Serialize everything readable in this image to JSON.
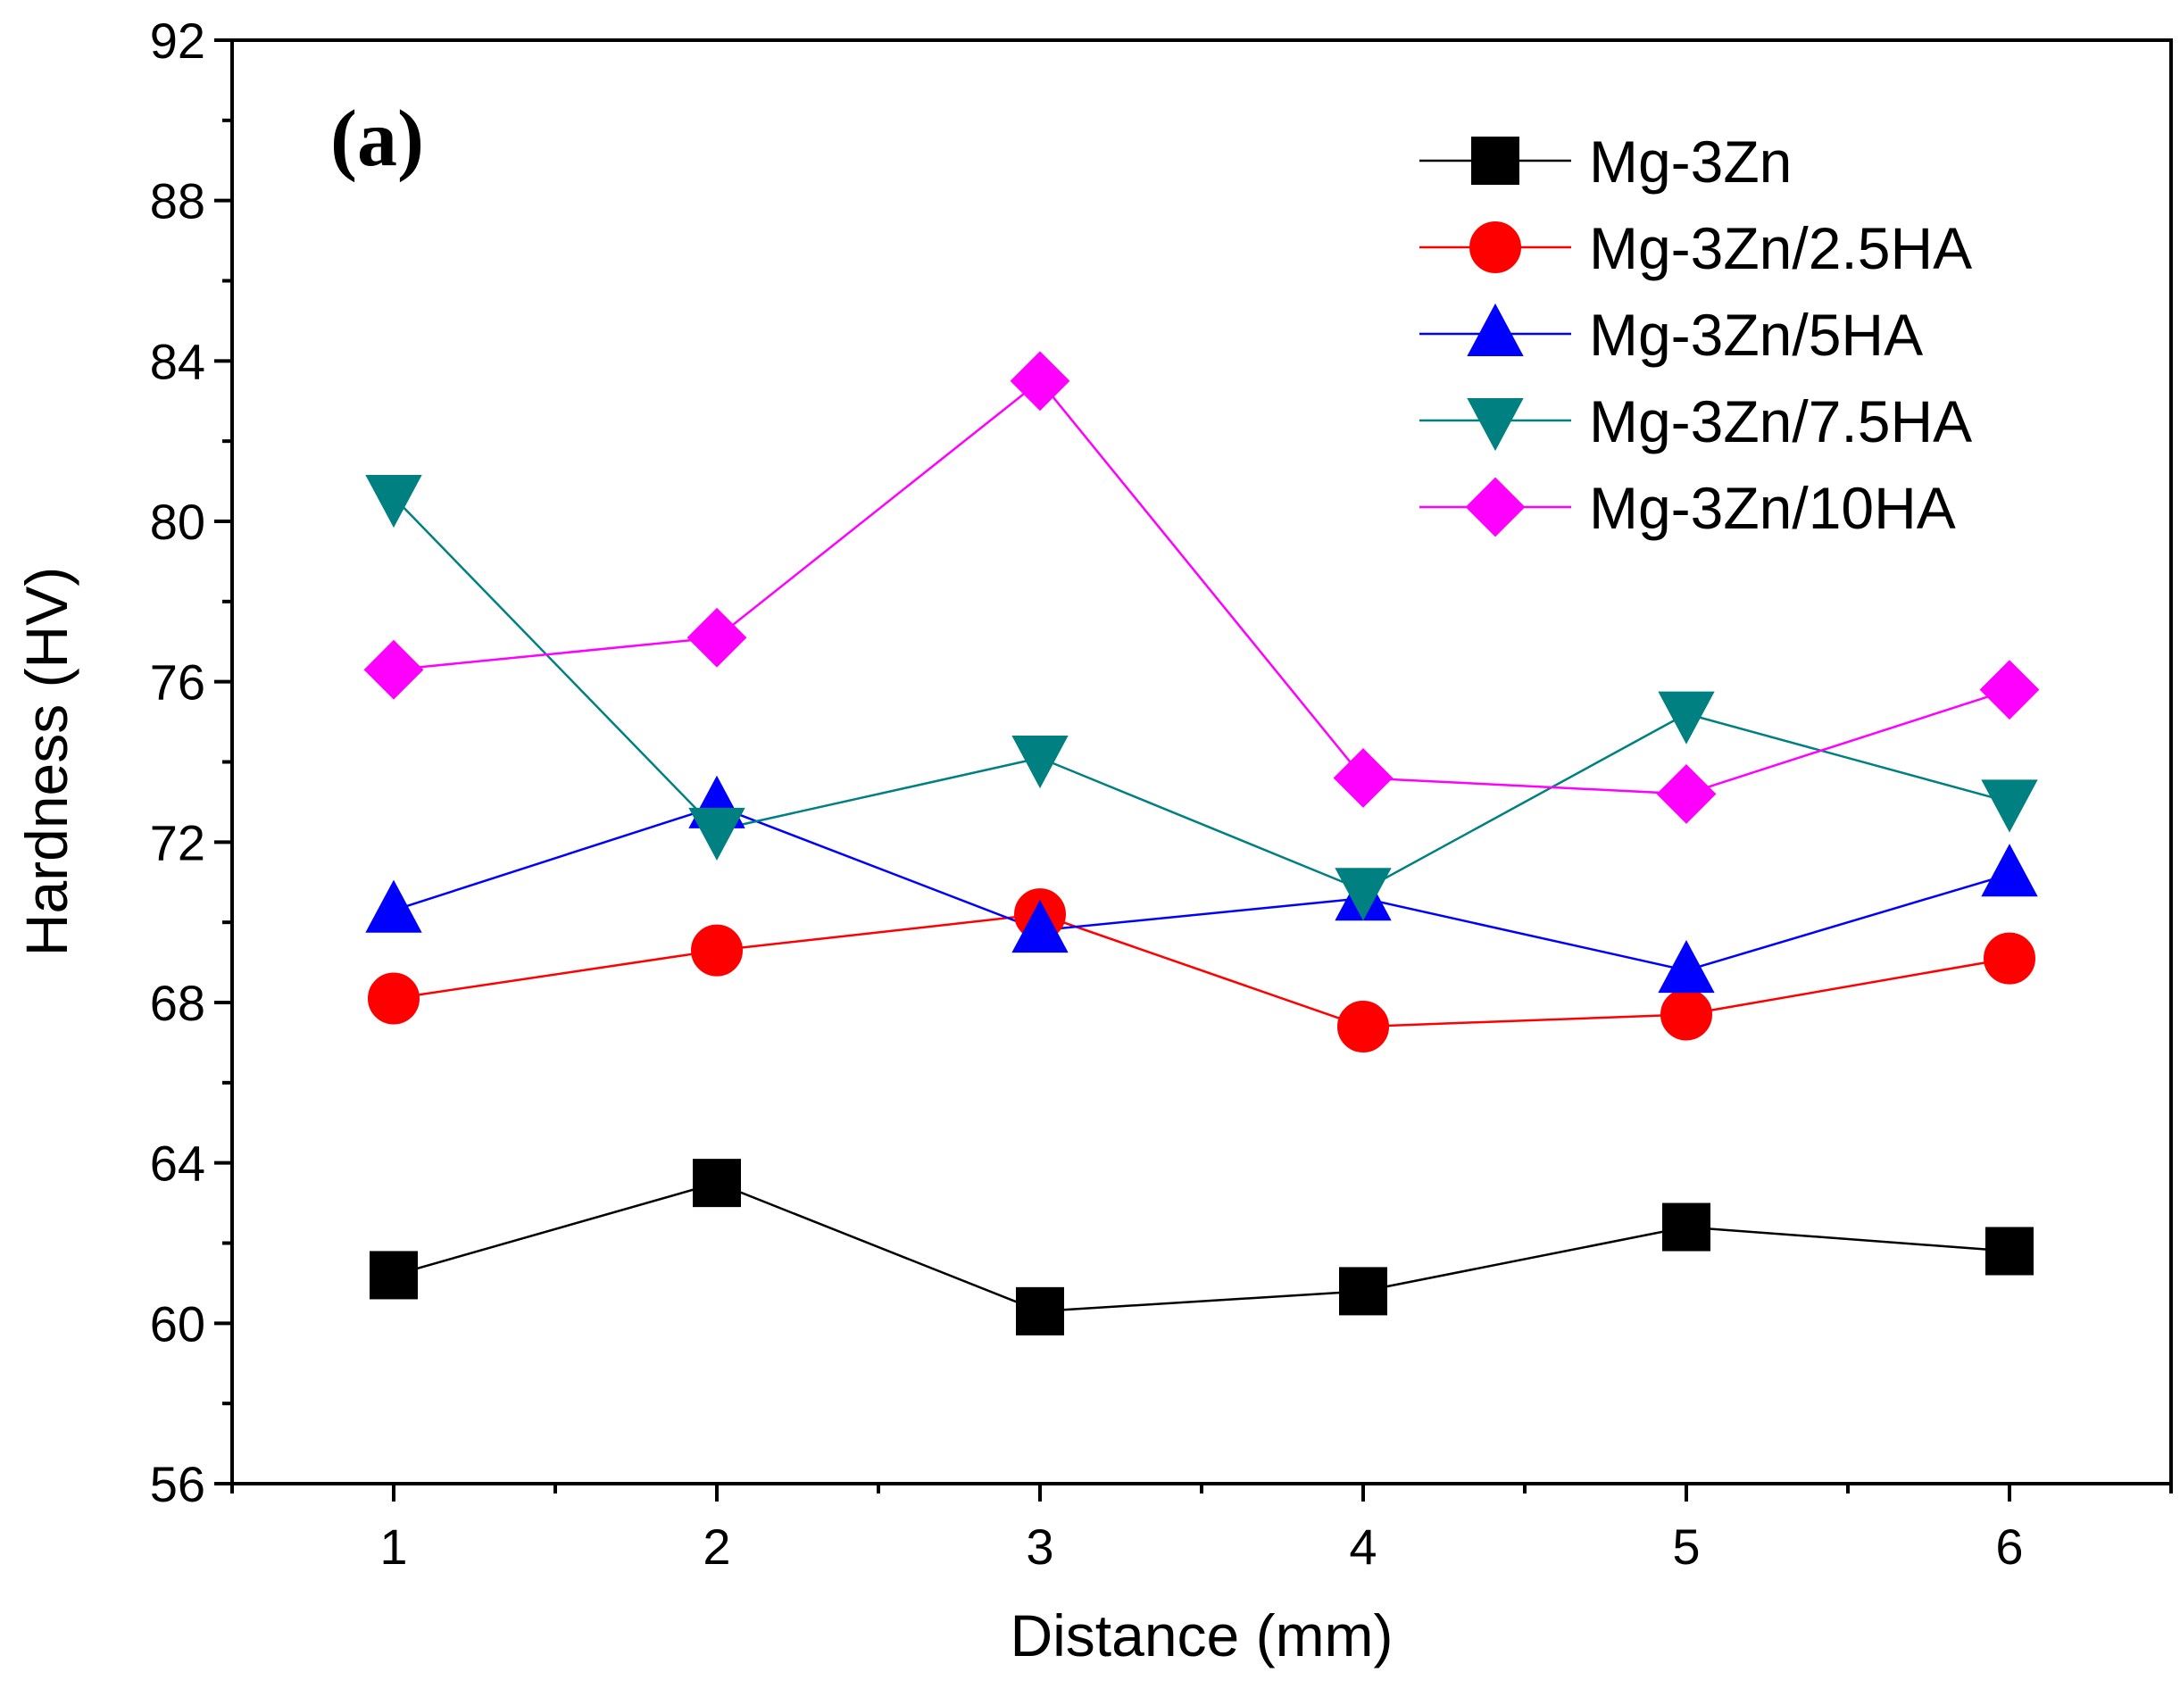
{
  "chart_data": {
    "type": "line",
    "title": "",
    "panel_label": "(a)",
    "xlabel": "Distance (mm)",
    "ylabel": "Hardness (HV)",
    "xlim": [
      0.5,
      6.5
    ],
    "ylim": [
      56,
      92
    ],
    "x": [
      1,
      2,
      3,
      4,
      5,
      6
    ],
    "xticks": [
      1,
      2,
      3,
      4,
      5,
      6
    ],
    "yticks": [
      56,
      60,
      64,
      68,
      72,
      76,
      80,
      84,
      88,
      92
    ],
    "grid": false,
    "legend_position": "top-right",
    "series": [
      {
        "name": "Mg-3Zn",
        "color": "#000000",
        "marker": "square",
        "values": [
          61.2,
          63.5,
          60.3,
          60.8,
          62.4,
          61.8
        ]
      },
      {
        "name": "Mg-3Zn/2.5HA",
        "color": "#ff0000",
        "marker": "circle",
        "values": [
          68.1,
          69.3,
          70.2,
          67.4,
          67.7,
          69.1
        ]
      },
      {
        "name": "Mg-3Zn/5HA",
        "color": "#0000ff",
        "marker": "triangle-up",
        "values": [
          70.3,
          72.9,
          69.8,
          70.6,
          68.8,
          71.2
        ]
      },
      {
        "name": "Mg-3Zn/7.5HA",
        "color": "#008080",
        "marker": "triangle-down",
        "values": [
          80.6,
          72.3,
          74.1,
          70.8,
          75.2,
          73.0
        ]
      },
      {
        "name": "Mg-3Zn/10HA",
        "color": "#ff00ff",
        "marker": "diamond",
        "values": [
          76.3,
          77.1,
          83.5,
          73.6,
          73.2,
          75.8
        ]
      }
    ]
  }
}
